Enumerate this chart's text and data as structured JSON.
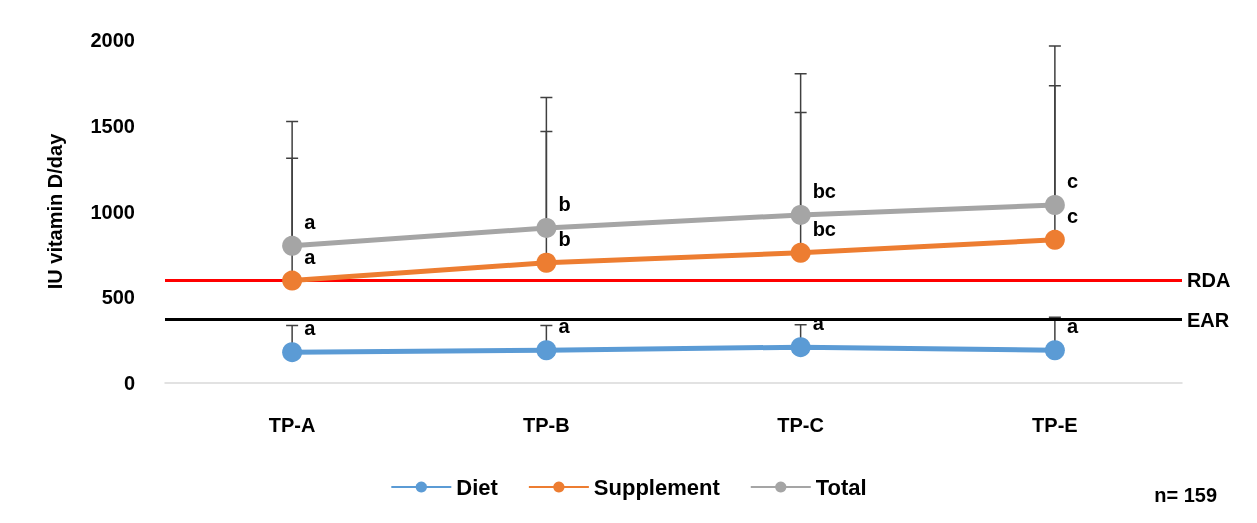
{
  "chart_data": {
    "type": "line",
    "ylabel": "IU vitamin D/day",
    "categories": [
      "TP-A",
      "TP-B",
      "TP-C",
      "TP-E"
    ],
    "series": [
      {
        "name": "Diet",
        "color": "#5b9bd5",
        "values": [
          180,
          191,
          209,
          191
        ],
        "errors": [
          [
            180,
            336
          ],
          [
            191,
            336
          ],
          [
            209,
            340
          ],
          [
            191,
            383
          ]
        ]
      },
      {
        "name": "Supplement",
        "color": "#ed7d31",
        "values": [
          597,
          701,
          759,
          835
        ],
        "errors": [
          [
            597,
            1310
          ],
          [
            701,
            1467
          ],
          [
            759,
            1577
          ],
          [
            835,
            1733
          ]
        ]
      },
      {
        "name": "Total",
        "color": "#a5a5a5",
        "values": [
          800,
          904,
          980,
          1038
        ],
        "errors": [
          [
            800,
            1525
          ],
          [
            904,
            1664
          ],
          [
            980,
            1803
          ],
          [
            1038,
            1965
          ]
        ]
      }
    ],
    "ylim": [
      0,
      2000
    ],
    "yticks": [
      0,
      500,
      1000,
      1500,
      2000
    ],
    "grid": false,
    "legend": "bottom",
    "marker": "circle",
    "line_style": "solid",
    "ref_lines": [
      {
        "axis": "y",
        "value": 600,
        "label": "RDA",
        "color": "#ff0000"
      },
      {
        "axis": "y",
        "value": 370,
        "label": "EAR",
        "color": "#000000"
      }
    ],
    "annotations": [
      {
        "text": "a",
        "x": "TP-A",
        "y": 180
      },
      {
        "text": "a",
        "x": "TP-B",
        "y": 191
      },
      {
        "text": "a",
        "x": "TP-C",
        "y": 209
      },
      {
        "text": "a",
        "x": "TP-E",
        "y": 191
      },
      {
        "text": "a",
        "x": "TP-A",
        "y": 597
      },
      {
        "text": "b",
        "x": "TP-B",
        "y": 701
      },
      {
        "text": "bc",
        "x": "TP-C",
        "y": 759
      },
      {
        "text": "c",
        "x": "TP-E",
        "y": 835
      },
      {
        "text": "a",
        "x": "TP-A",
        "y": 800
      },
      {
        "text": "b",
        "x": "TP-B",
        "y": 904
      },
      {
        "text": "bc",
        "x": "TP-C",
        "y": 980
      },
      {
        "text": "c",
        "x": "TP-E",
        "y": 1038
      },
      "n= 159"
    ]
  }
}
